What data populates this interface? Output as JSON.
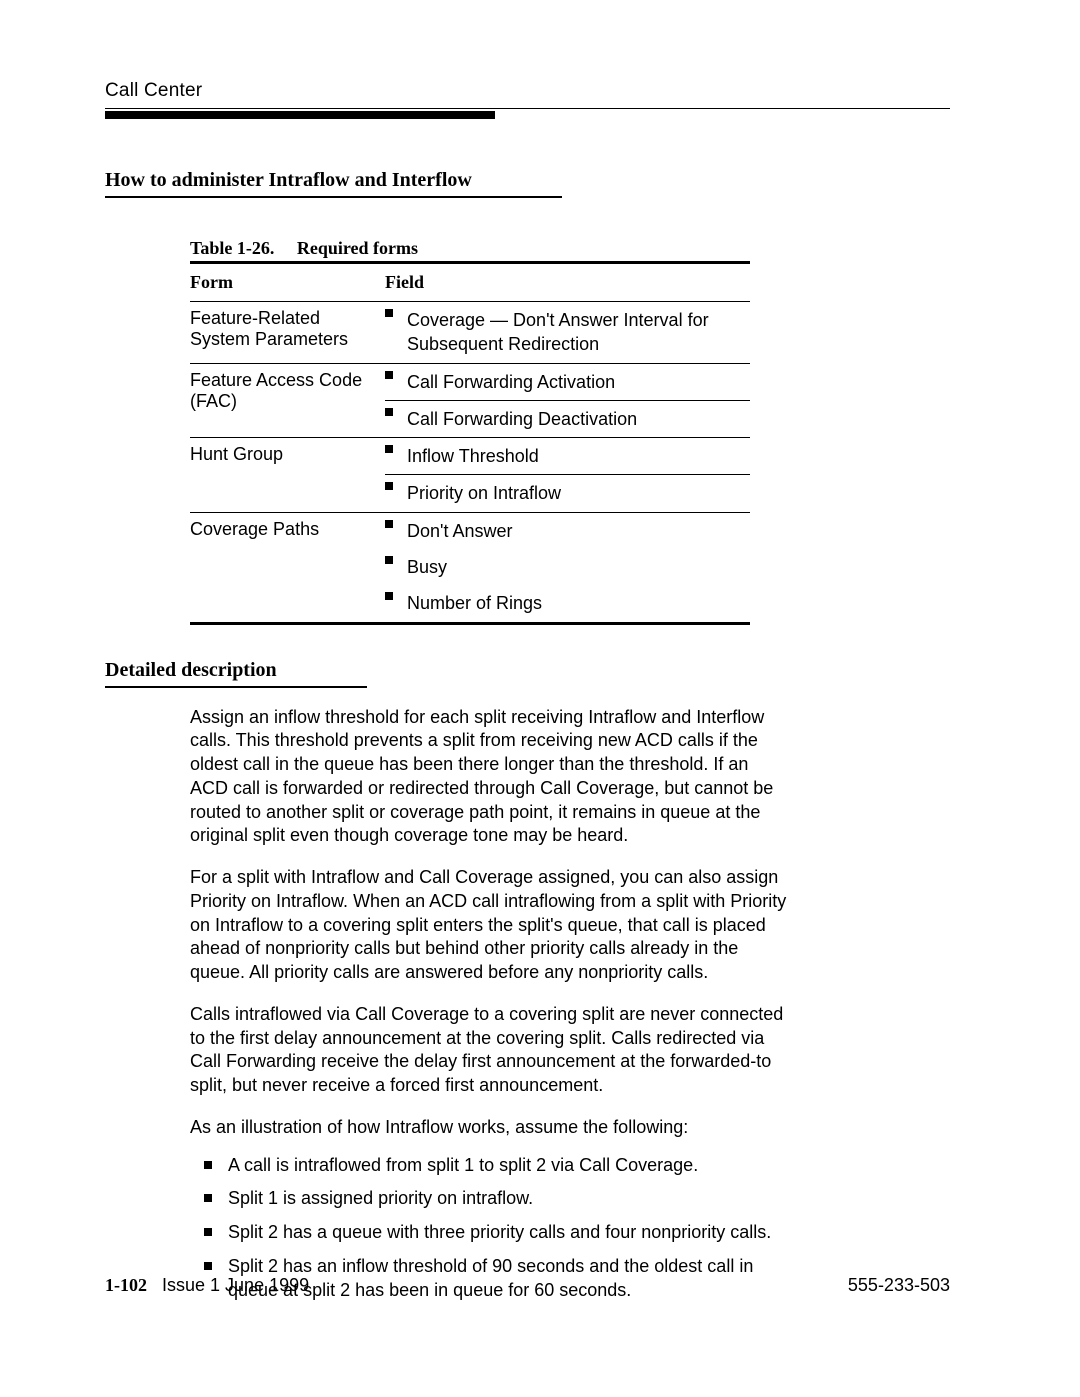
{
  "header": {
    "running_head": "Call Center"
  },
  "section1": {
    "heading": "How to administer Intraflow and Interflow"
  },
  "table": {
    "caption_number": "Table 1-26.",
    "caption_title": "Required forms",
    "columns": {
      "form": "Form",
      "field": "Field"
    },
    "rows": [
      {
        "form": "Feature-Related System Parameters",
        "fields": [
          "Coverage — Don't Answer Interval for Subsequent Redirection"
        ],
        "field_borders": [
          false
        ]
      },
      {
        "form": "Feature Access Code (FAC)",
        "fields": [
          "Call Forwarding Activation",
          "Call Forwarding Deactivation"
        ],
        "field_borders": [
          true,
          false
        ]
      },
      {
        "form": "Hunt Group",
        "fields": [
          "Inflow Threshold",
          "Priority on Intraflow"
        ],
        "field_borders": [
          true,
          false
        ]
      },
      {
        "form": "Coverage Paths",
        "fields": [
          "Don't Answer",
          "Busy",
          "Number of Rings"
        ],
        "field_borders": [
          false,
          false,
          false
        ]
      }
    ]
  },
  "section2": {
    "heading": "Detailed description",
    "paragraphs": [
      "Assign an inflow threshold for each split receiving Intraflow and Interflow calls. This threshold prevents a split from receiving new ACD calls if the oldest call in the queue has been there longer than the threshold. If an ACD call is forwarded or redirected through Call Coverage, but cannot be routed to another split or coverage path point, it remains in queue at the original split even though coverage tone may be heard.",
      "For a split with Intraflow and Call Coverage assigned, you can also assign Priority on Intraflow. When an ACD call intraflowing from a split with Priority on Intraflow to a covering split enters the split's queue, that call is placed ahead of nonpriority calls but behind other priority calls already in the queue. All priority calls are answered before any nonpriority calls.",
      "Calls intraflowed via Call Coverage to a covering split are never connected to the first delay announcement at the covering split. Calls redirected via Call Forwarding receive the delay first announcement at the forwarded-to split, but never receive a forced first announcement.",
      "As an illustration of how Intraflow works, assume the following:"
    ],
    "bullets": [
      "A call is intraflowed from split 1 to split 2 via Call Coverage.",
      "Split 1 is assigned priority on intraflow.",
      "Split 2 has a queue with three priority calls and four nonpriority calls.",
      "Split 2 has an inflow threshold of 90 seconds and the oldest call in queue at split 2 has been in queue for 60 seconds."
    ]
  },
  "footer": {
    "page_number": "1-102",
    "issue": "Issue 1 June 1999",
    "doc_number": "555-233-503"
  }
}
